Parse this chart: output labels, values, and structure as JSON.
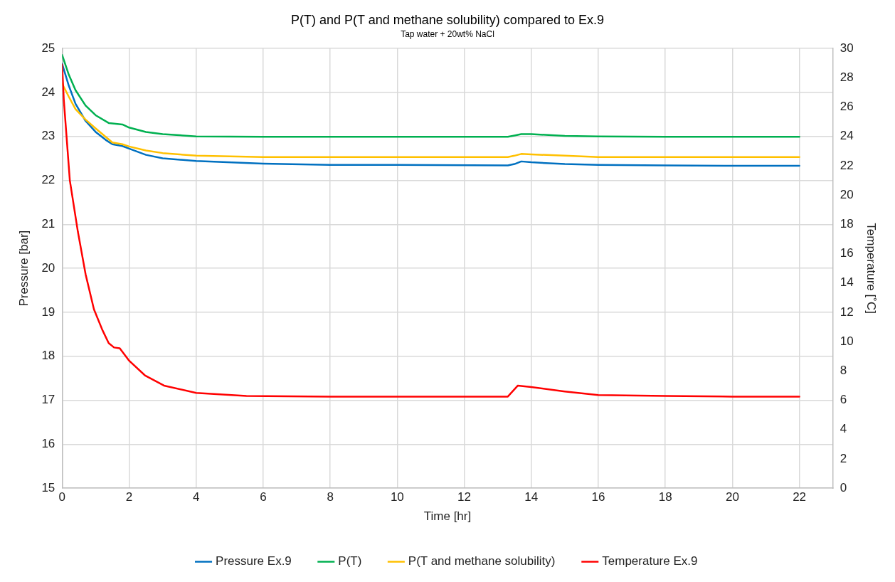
{
  "chart_data": {
    "type": "line",
    "title": "P(T) and P(T and methane solubility) compared to Ex.9",
    "subtitle": "Tap water + 20wt% NaCl",
    "xlabel": "Time [hr]",
    "ylabel": "Pressure [bar]",
    "y2label": "Temperature [˚C]",
    "xlim": [
      0,
      23
    ],
    "xticks": [
      0,
      2,
      4,
      6,
      8,
      10,
      12,
      14,
      16,
      18,
      20,
      22
    ],
    "ylim": [
      15,
      25
    ],
    "yticks": [
      15,
      16,
      17,
      18,
      19,
      20,
      21,
      22,
      23,
      24,
      25
    ],
    "y2lim": [
      0,
      30
    ],
    "y2ticks": [
      0,
      2,
      4,
      6,
      8,
      10,
      12,
      14,
      16,
      18,
      20,
      22,
      24,
      26,
      28,
      30
    ],
    "grid": true,
    "legend": "bottom",
    "marker": "none",
    "line_style": "solid",
    "series": [
      {
        "name": "Pressure Ex.9",
        "color": "#0070c0",
        "x": [
          0,
          0.2,
          0.4,
          0.7,
          1,
          1.3,
          1.5,
          1.8,
          2,
          2.5,
          3,
          4,
          6,
          8,
          10,
          13.3,
          13.5,
          13.7,
          14,
          15,
          16,
          18,
          20,
          22
        ],
        "values": [
          24.65,
          24.15,
          23.74,
          23.35,
          23.1,
          22.92,
          22.82,
          22.78,
          22.72,
          22.58,
          22.5,
          22.44,
          22.38,
          22.35,
          22.35,
          22.34,
          22.37,
          22.43,
          22.41,
          22.37,
          22.35,
          22.34,
          22.33,
          22.33
        ]
      },
      {
        "name": "P(T)",
        "color": "#00b050",
        "x": [
          0,
          0.2,
          0.4,
          0.7,
          1,
          1.4,
          1.8,
          2,
          2.5,
          3,
          4,
          6,
          8,
          10,
          13.3,
          13.5,
          13.7,
          14,
          15,
          16,
          18,
          20,
          22
        ],
        "values": [
          24.85,
          24.4,
          24.05,
          23.7,
          23.48,
          23.3,
          23.27,
          23.2,
          23.1,
          23.05,
          23.0,
          22.99,
          22.99,
          22.99,
          22.99,
          23.02,
          23.05,
          23.05,
          23.01,
          23.0,
          22.99,
          22.99,
          22.99
        ]
      },
      {
        "name": "P(T and methane solubility)",
        "color": "#ffc000",
        "x": [
          0,
          0.2,
          0.4,
          0.7,
          1,
          1.5,
          1.8,
          2,
          2.5,
          3,
          4,
          6,
          8,
          10,
          13.3,
          13.5,
          13.7,
          14,
          15,
          16,
          18,
          20,
          22
        ],
        "values": [
          24.2,
          23.9,
          23.62,
          23.38,
          23.18,
          22.86,
          22.82,
          22.77,
          22.68,
          22.62,
          22.56,
          22.53,
          22.53,
          22.53,
          22.53,
          22.56,
          22.6,
          22.59,
          22.56,
          22.53,
          22.53,
          22.53,
          22.53
        ]
      },
      {
        "name": "Temperature Ex.9",
        "color": "#ff0000",
        "axis": "y2",
        "x": [
          0,
          0.05,
          0.23,
          0.47,
          0.7,
          0.95,
          1.2,
          1.39,
          1.55,
          1.72,
          2,
          2.47,
          3.04,
          4,
          5.5,
          8,
          10,
          13.3,
          13.6,
          14,
          15,
          16,
          18,
          20,
          22
        ],
        "values": [
          28.9,
          26.5,
          21,
          17.5,
          14.6,
          12.2,
          10.8,
          9.9,
          9.6,
          9.55,
          8.7,
          7.7,
          7,
          6.5,
          6.3,
          6.25,
          6.25,
          6.25,
          7.0,
          6.9,
          6.6,
          6.35,
          6.3,
          6.25,
          6.25
        ]
      }
    ]
  }
}
